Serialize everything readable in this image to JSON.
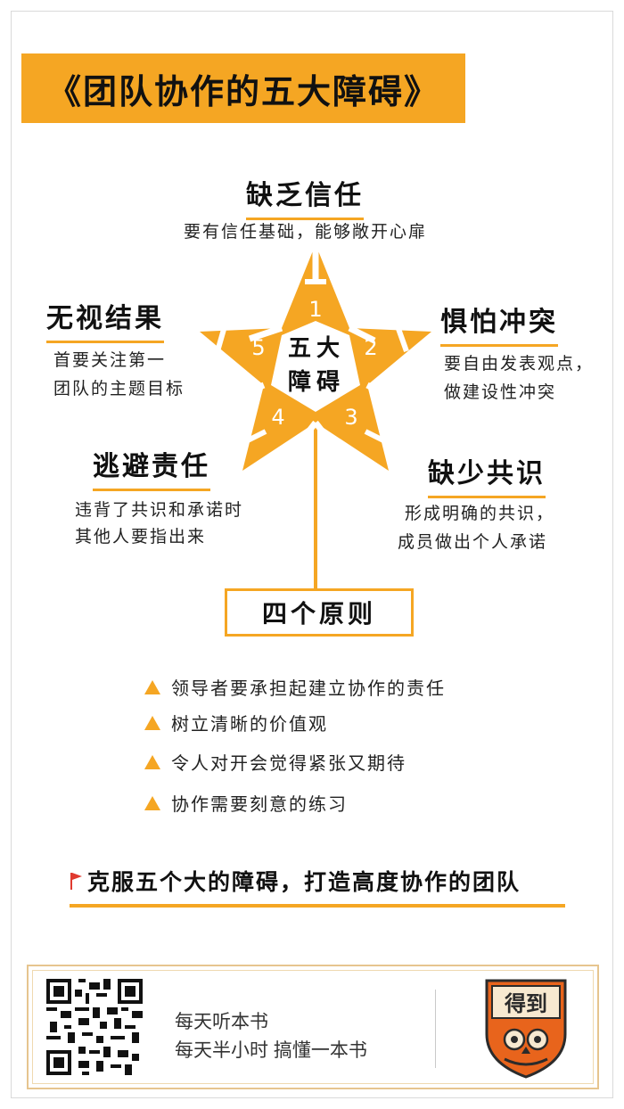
{
  "title": "《团队协作的五大障碍》",
  "star": {
    "center_label_line1": "五大",
    "center_label_line2": "障碍",
    "numbers": [
      "1",
      "2",
      "3",
      "4",
      "5"
    ]
  },
  "obstacles": [
    {
      "heading": "缺乏信任",
      "desc": [
        "要有信任基础，能够敞开心扉"
      ]
    },
    {
      "heading": "惧怕冲突",
      "desc": [
        "要自由发表观点，",
        "做建设性冲突"
      ]
    },
    {
      "heading": "缺少共识",
      "desc": [
        "形成明确的共识，",
        "成员做出个人承诺"
      ]
    },
    {
      "heading": "逃避责任",
      "desc": [
        "违背了共识和承诺时",
        "其他人要指出来"
      ]
    },
    {
      "heading": "无视结果",
      "desc": [
        "首要关注第一",
        "团队的主题目标"
      ]
    }
  ],
  "principles": {
    "title": "四个原则",
    "items": [
      "领导者要承担起建立协作的责任",
      "树立清晰的价值观",
      "令人对开会觉得紧张又期待",
      "协作需要刻意的练习"
    ]
  },
  "conclusion": "克服五个大的障碍，打造高度协作的团队",
  "footer": {
    "line1": "每天听本书",
    "line2": "每天半小时 搞懂一本书",
    "logo_text": "得到"
  },
  "colors": {
    "accent": "#f5a623",
    "flag": "#e03a2f",
    "logo_shield": "#e8641c",
    "logo_dark": "#2b2b2b"
  }
}
